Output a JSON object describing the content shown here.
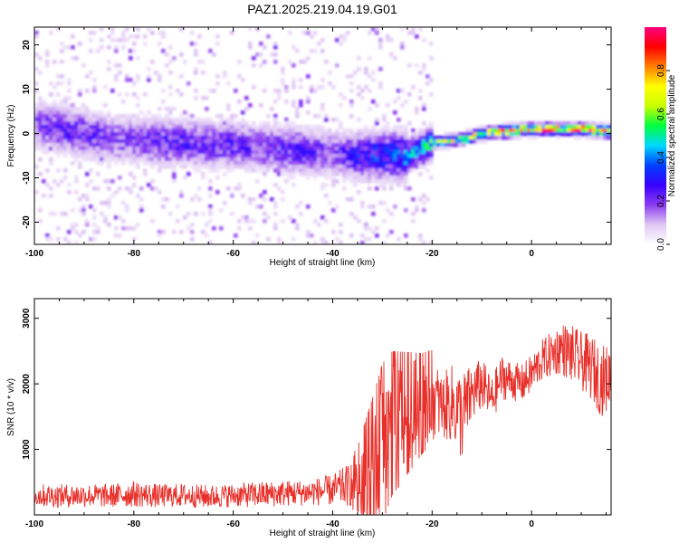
{
  "title": "PAZ1.2025.219.04.19.G01",
  "chart_data": [
    {
      "type": "heatmap",
      "xlabel": "Height of straight line (km)",
      "ylabel": "Frequency (Hz)",
      "xlim": [
        -100,
        16
      ],
      "ylim": [
        -25,
        24
      ],
      "xticks": [
        -100,
        -80,
        -60,
        -40,
        -20,
        0
      ],
      "yticks": [
        -20,
        -10,
        0,
        10,
        20
      ],
      "colorbar": {
        "label": "Normalized spectral amplitude",
        "range": [
          0,
          1
        ],
        "ticks": [
          "0.0",
          "0.2",
          "0.4",
          "0.6",
          "0.8"
        ],
        "colors": [
          "#ffffff",
          "#e0c8f4",
          "#8b3cf0",
          "#3800ff",
          "#0040ff",
          "#00d8ff",
          "#00ff40",
          "#c8ff00",
          "#ffff00",
          "#ff8000",
          "#ff0000",
          "#ff0080"
        ]
      },
      "ridge": {
        "x": [
          -100,
          -95,
          -90,
          -85,
          -80,
          -75,
          -70,
          -65,
          -60,
          -55,
          -50,
          -45,
          -40,
          -35,
          -30,
          -25,
          -20,
          -15,
          -10,
          -5,
          0,
          5,
          10,
          15
        ],
        "frequency": [
          2,
          1,
          0,
          -1,
          -1.5,
          -2,
          -2,
          -2.5,
          -2.5,
          -3,
          -3.5,
          -4,
          -4.5,
          -5,
          -5,
          -5,
          -2,
          -1.5,
          0,
          0.5,
          1,
          1,
          1,
          0.5
        ],
        "amplitude": [
          0.2,
          0.25,
          0.25,
          0.2,
          0.2,
          0.25,
          0.25,
          0.25,
          0.25,
          0.2,
          0.25,
          0.25,
          0.2,
          0.3,
          0.35,
          0.4,
          0.5,
          0.6,
          0.7,
          0.75,
          0.8,
          0.8,
          0.85,
          0.85
        ]
      }
    },
    {
      "type": "line",
      "xlabel": "Height of straight line (km)",
      "ylabel": "SNR (10 * v/v)",
      "xlim": [
        -100,
        16
      ],
      "ylim": [
        0,
        3300
      ],
      "xticks": [
        -100,
        -80,
        -60,
        -40,
        -20,
        0
      ],
      "yticks": [
        1000,
        2000,
        3000
      ],
      "series": [
        {
          "color": "#e8302a",
          "x": [
            -100,
            -95,
            -90,
            -85,
            -80,
            -75,
            -70,
            -65,
            -60,
            -55,
            -50,
            -45,
            -40,
            -37,
            -35,
            -32,
            -30,
            -28,
            -26,
            -24,
            -22,
            -20,
            -18,
            -16,
            -14,
            -12,
            -10,
            -8,
            -6,
            -4,
            -2,
            0,
            2,
            4,
            6,
            8,
            10,
            12,
            14,
            16
          ],
          "mean": [
            300,
            290,
            300,
            290,
            320,
            290,
            300,
            280,
            300,
            310,
            330,
            340,
            380,
            450,
            550,
            800,
            1100,
            1400,
            1500,
            1600,
            1700,
            1800,
            1650,
            1700,
            1500,
            1850,
            2000,
            1750,
            2100,
            2050,
            2000,
            2150,
            2350,
            2450,
            2550,
            2450,
            2350,
            2250,
            2050,
            2100
          ],
          "spread": [
            180,
            180,
            180,
            180,
            200,
            180,
            180,
            180,
            180,
            200,
            200,
            200,
            240,
            320,
            450,
            900,
            1100,
            1000,
            900,
            800,
            700,
            650,
            500,
            600,
            700,
            450,
            400,
            350,
            350,
            300,
            300,
            300,
            320,
            350,
            400,
            450,
            450,
            500,
            550,
            500
          ]
        }
      ]
    }
  ]
}
